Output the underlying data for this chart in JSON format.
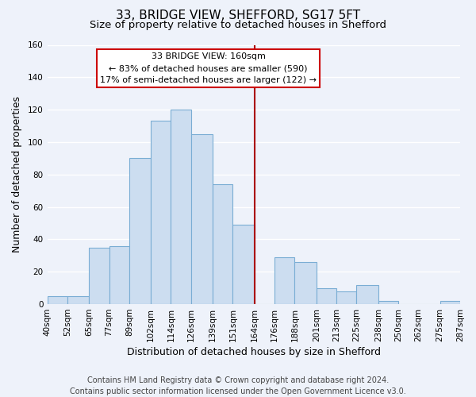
{
  "title": "33, BRIDGE VIEW, SHEFFORD, SG17 5FT",
  "subtitle": "Size of property relative to detached houses in Shefford",
  "xlabel": "Distribution of detached houses by size in Shefford",
  "ylabel": "Number of detached properties",
  "bar_edges": [
    40,
    52,
    65,
    77,
    89,
    102,
    114,
    126,
    139,
    151,
    164,
    176,
    188,
    201,
    213,
    225,
    238,
    250,
    262,
    275,
    287
  ],
  "bar_heights": [
    5,
    5,
    35,
    36,
    90,
    113,
    120,
    105,
    74,
    49,
    0,
    29,
    26,
    10,
    8,
    12,
    2,
    0,
    0,
    2
  ],
  "bar_color": "#ccddf0",
  "bar_edge_color": "#7aadd4",
  "reference_line_x": 164,
  "reference_line_color": "#aa0000",
  "annotation_line1": "33 BRIDGE VIEW: 160sqm",
  "annotation_line2": "← 83% of detached houses are smaller (590)",
  "annotation_line3": "17% of semi-detached houses are larger (122) →",
  "annotation_box_facecolor": "#ffffff",
  "annotation_box_edgecolor": "#cc0000",
  "ylim": [
    0,
    160
  ],
  "yticks": [
    0,
    20,
    40,
    60,
    80,
    100,
    120,
    140,
    160
  ],
  "tick_labels": [
    "40sqm",
    "52sqm",
    "65sqm",
    "77sqm",
    "89sqm",
    "102sqm",
    "114sqm",
    "126sqm",
    "139sqm",
    "151sqm",
    "164sqm",
    "176sqm",
    "188sqm",
    "201sqm",
    "213sqm",
    "225sqm",
    "238sqm",
    "250sqm",
    "262sqm",
    "275sqm",
    "287sqm"
  ],
  "footer_line1": "Contains HM Land Registry data © Crown copyright and database right 2024.",
  "footer_line2": "Contains public sector information licensed under the Open Government Licence v3.0.",
  "background_color": "#eef2fa",
  "plot_background_color": "#eef2fa",
  "grid_color": "#ffffff",
  "title_fontsize": 11,
  "subtitle_fontsize": 9.5,
  "axis_label_fontsize": 9,
  "tick_fontsize": 7.5,
  "annotation_fontsize": 8,
  "footer_fontsize": 7
}
